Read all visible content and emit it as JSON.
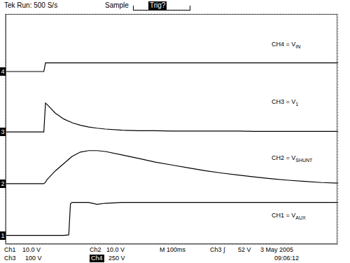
{
  "chart_data": {
    "type": "line",
    "header": [
      "Tek Run: 500 S/s",
      "Sample",
      "Trig?"
    ],
    "footer": [
      [
        "Ch1",
        "10.0 V",
        "Ch2",
        "10.0 V",
        "M 100ms",
        "Ch3 ∫",
        "52 V",
        "3 May 2005"
      ],
      [
        "Ch3",
        "100 V",
        "Ch4",
        "250 V",
        "09:06:12"
      ]
    ],
    "x": [
      0,
      0.5,
      1.0,
      1.15,
      1.2,
      1.25,
      1.5,
      1.75,
      1.9,
      1.95,
      2.0,
      2.25,
      2.5,
      2.75,
      3,
      3.5,
      4,
      4.5,
      5,
      5.5,
      6,
      6.5,
      7,
      7.5,
      8,
      8.5,
      9,
      9.5,
      10
    ],
    "xlim": [
      0,
      10
    ],
    "xticks": [
      0,
      1,
      2,
      3,
      4,
      5,
      6,
      7,
      8,
      9,
      10
    ],
    "ylim": [
      0,
      8
    ],
    "yticks": [
      0,
      1,
      2,
      3,
      4,
      5,
      6,
      7,
      8
    ],
    "grid": true,
    "tick_labels": false,
    "series": [
      {
        "name": "CH4",
        "label": "CH4 = V",
        "subscript": "IN",
        "ground": "4",
        "ground_level": 6.0,
        "color": "#000000",
        "values": [
          6.0,
          6.0,
          6.0,
          6.0,
          6.3,
          6.3,
          6.3,
          6.3,
          6.3,
          6.3,
          6.3,
          6.3,
          6.3,
          6.3,
          6.3,
          6.3,
          6.3,
          6.3,
          6.3,
          6.3,
          6.3,
          6.3,
          6.3,
          6.3,
          6.3,
          6.3,
          6.3,
          6.3,
          6.3
        ]
      },
      {
        "name": "CH3",
        "label": "CH3 = V",
        "subscript": "1",
        "ground": "3",
        "ground_level": 3.9,
        "color": "#000000",
        "values": [
          3.9,
          3.9,
          3.9,
          3.9,
          4.9,
          4.85,
          4.55,
          4.35,
          4.27,
          4.25,
          4.22,
          4.13,
          4.07,
          4.03,
          4.0,
          3.96,
          3.94,
          3.94,
          3.93,
          3.93,
          3.93,
          3.93,
          3.93,
          3.92,
          3.92,
          3.92,
          3.92,
          3.92,
          3.92
        ]
      },
      {
        "name": "CH2",
        "label": "CH2 = V",
        "subscript": "SHUNT",
        "ground": "2",
        "ground_level": 2.1,
        "color": "#000000",
        "values": [
          2.1,
          2.1,
          2.1,
          2.1,
          2.15,
          2.25,
          2.55,
          2.8,
          2.95,
          3.0,
          3.05,
          3.2,
          3.25,
          3.25,
          3.22,
          3.1,
          2.98,
          2.85,
          2.75,
          2.65,
          2.55,
          2.47,
          2.4,
          2.33,
          2.27,
          2.22,
          2.18,
          2.14,
          2.12
        ]
      },
      {
        "name": "CH1",
        "label": "CH1 = V",
        "subscript": "AUX",
        "ground": "1",
        "ground_level": 0.3,
        "color": "#000000",
        "values": [
          0.3,
          0.3,
          0.3,
          0.3,
          0.3,
          0.3,
          0.3,
          0.3,
          0.32,
          1.4,
          1.45,
          1.45,
          1.45,
          1.38,
          1.42,
          1.45,
          1.45,
          1.45,
          1.45,
          1.45,
          1.45,
          1.45,
          1.45,
          1.45,
          1.45,
          1.45,
          1.45,
          1.45,
          1.45
        ]
      }
    ]
  }
}
